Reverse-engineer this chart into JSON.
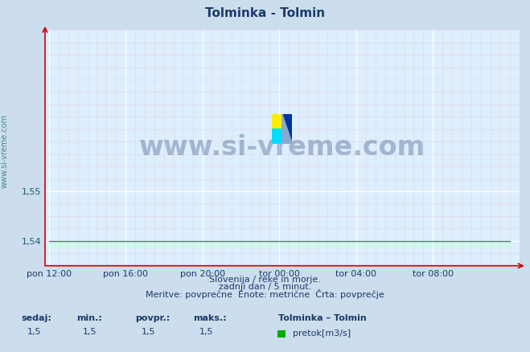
{
  "title": "Tolminka - Tolmin",
  "title_color": "#1a3a6b",
  "bg_color": "#ccdded",
  "plot_bg_color": "#ddeeff",
  "grid_color_major": "#ffffff",
  "grid_color_minor": "#f0b8b8",
  "line_color": "#00bb00",
  "axis_color": "#cc0000",
  "y_label_color": "#1a5a7a",
  "x_label_color": "#1a3a6b",
  "yticks": [
    1.54,
    1.55
  ],
  "ytick_labels": [
    "1,54",
    "1,55"
  ],
  "ylim": [
    1.535,
    1.5825
  ],
  "xtick_labels": [
    "pon 12:00",
    "pon 16:00",
    "pon 20:00",
    "tor 00:00",
    "tor 04:00",
    "tor 08:00"
  ],
  "xtick_positions": [
    0,
    4,
    8,
    12,
    16,
    20
  ],
  "xlim": [
    -0.2,
    24.5
  ],
  "data_x": [
    0,
    24
  ],
  "data_y": [
    1.54,
    1.54
  ],
  "watermark": "www.si-vreme.com",
  "watermark_color": "#1a3a6b",
  "footer_line1": "Slovenija / reke in morje.",
  "footer_line2": "zadnji dan / 5 minut.",
  "footer_line3": "Meritve: povprečne  Enote: metrične  Črta: povprečje",
  "footer_color": "#1a3a6b",
  "stats_labels": [
    "sedaj:",
    "min.:",
    "povpr.:",
    "maks.:"
  ],
  "stats_values": [
    "1,5",
    "1,5",
    "1,5",
    "1,5"
  ],
  "legend_title": "Tolminka – Tolmin",
  "legend_label": "pretok[m3/s]",
  "legend_color": "#00aa00",
  "sidebar_text": "www.si-vreme.com",
  "sidebar_color": "#4a8a9a",
  "logo_yellow": "#ffee00",
  "logo_cyan": "#00ddff",
  "logo_blue": "#003399",
  "logo_lightblue": "#88aacc"
}
